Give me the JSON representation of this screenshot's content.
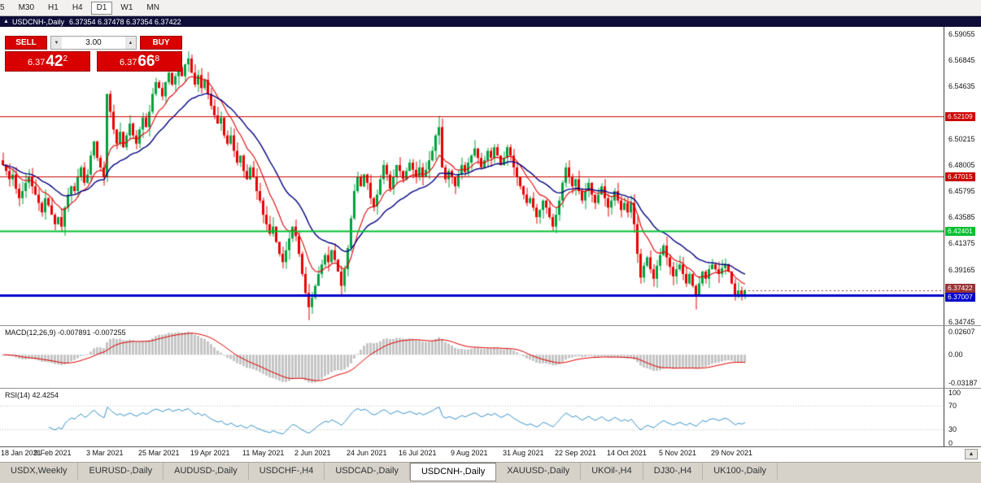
{
  "toolbar": {
    "timeframes": [
      "5",
      "M30",
      "H1",
      "H4",
      "D1",
      "W1",
      "MN"
    ],
    "active": "D1"
  },
  "chart": {
    "title_marker": "▲",
    "symbol_title": "USDCNH-,Daily",
    "ohlc": "6.37354 6.37478 6.37354 6.37422",
    "scroll_button_icon": "▲"
  },
  "trade_panel": {
    "sell_label": "SELL",
    "buy_label": "BUY",
    "volume": "3.00",
    "volume_down_icon": "▼",
    "volume_up_icon": "▲",
    "sell_price": {
      "base": "6.37",
      "big": "42",
      "sup": "2"
    },
    "buy_price": {
      "base": "6.37",
      "big": "66",
      "sup": "8"
    },
    "button_color": "#d80000"
  },
  "chart_data": {
    "type": "candlestick",
    "symbol": "USDCNH-",
    "timeframe": "Daily",
    "title": "USDCNH-,Daily",
    "ohlc_display": {
      "open": "6.37354",
      "high": "6.37478",
      "low": "6.37354",
      "close": "6.37422"
    },
    "ylim": [
      6.3447,
      6.5967
    ],
    "candle_up": "#00a13e",
    "candle_down": "#e60000",
    "closes": [
      6.48,
      6.475,
      6.468,
      6.472,
      6.46,
      6.452,
      6.458,
      6.465,
      6.47,
      6.462,
      6.455,
      6.448,
      6.44,
      6.452,
      6.446,
      6.438,
      6.43,
      6.436,
      6.428,
      6.444,
      6.455,
      6.462,
      6.458,
      6.47,
      6.478,
      6.465,
      6.472,
      6.488,
      6.5,
      6.486,
      6.478,
      6.47,
      6.54,
      6.525,
      6.51,
      6.498,
      6.508,
      6.495,
      6.505,
      6.515,
      6.505,
      6.498,
      6.51,
      6.52,
      6.512,
      6.525,
      6.54,
      6.55,
      6.545,
      6.538,
      6.55,
      6.558,
      6.548,
      6.555,
      6.562,
      6.555,
      6.565,
      6.57,
      6.558,
      6.548,
      6.556,
      6.545,
      6.552,
      6.54,
      6.53,
      6.522,
      6.515,
      6.52,
      6.505,
      6.498,
      6.505,
      6.492,
      6.482,
      6.488,
      6.475,
      6.468,
      6.478,
      6.47,
      6.458,
      6.45,
      6.438,
      6.43,
      6.422,
      6.428,
      6.415,
      6.405,
      6.398,
      6.408,
      6.418,
      6.428,
      6.42,
      6.405,
      6.388,
      6.372,
      6.36,
      6.368,
      6.378,
      6.388,
      6.396,
      6.404,
      6.398,
      6.408,
      6.4,
      6.39,
      6.378,
      6.392,
      6.41,
      6.435,
      6.458,
      6.47,
      6.462,
      6.472,
      6.465,
      6.452,
      6.445,
      6.455,
      6.468,
      6.48,
      6.472,
      6.46,
      6.47,
      6.48,
      6.475,
      6.468,
      6.475,
      6.482,
      6.476,
      6.47,
      6.478,
      6.47,
      6.476,
      6.484,
      6.492,
      6.505,
      6.512,
      6.478,
      6.468,
      6.475,
      6.47,
      6.462,
      6.472,
      6.48,
      6.474,
      6.482,
      6.488,
      6.494,
      6.486,
      6.478,
      6.484,
      6.492,
      6.486,
      6.495,
      6.488,
      6.48,
      6.486,
      6.495,
      6.488,
      6.478,
      6.47,
      6.462,
      6.455,
      6.448,
      6.452,
      6.444,
      6.436,
      6.442,
      6.45,
      6.444,
      6.436,
      6.428,
      6.438,
      6.45,
      6.465,
      6.478,
      6.47,
      6.462,
      6.468,
      6.458,
      6.45,
      6.458,
      6.465,
      6.455,
      6.448,
      6.455,
      6.462,
      6.452,
      6.444,
      6.45,
      6.458,
      6.45,
      6.442,
      6.448,
      6.44,
      6.448,
      6.43,
      6.405,
      6.385,
      6.395,
      6.402,
      6.392,
      6.384,
      6.395,
      6.404,
      6.412,
      6.402,
      6.394,
      6.386,
      6.392,
      6.396,
      6.388,
      6.38,
      6.388,
      6.378,
      6.37,
      6.38,
      6.39,
      6.384,
      6.392,
      6.396,
      6.392,
      6.388,
      6.393,
      6.396,
      6.39,
      6.38,
      6.369,
      6.374,
      6.37,
      6.3742
    ],
    "wick_overrides": {
      "57": {
        "high": 6.576
      },
      "94": {
        "low": 6.349
      },
      "134": {
        "high": 6.5215
      },
      "213": {
        "low": 6.358
      },
      "225": {
        "low": 6.3655
      }
    },
    "moving_averages": [
      {
        "name": "ma-fast",
        "period": 10,
        "color": "#dd0000"
      },
      {
        "name": "ma-slow",
        "period": 24,
        "color": "#000080"
      }
    ],
    "horizontal_lines": [
      {
        "price": 6.52109,
        "label": "6.52109",
        "color": "#cc0000",
        "lineWidth": 1
      },
      {
        "price": 6.47015,
        "label": "6.47015",
        "color": "#cc0000",
        "lineWidth": 1
      },
      {
        "price": 6.42401,
        "label": "6.42401",
        "color": "#00bf2f",
        "lineWidth": 2
      },
      {
        "price": 6.37007,
        "label": "6.37007",
        "color": "#0000cc",
        "lineWidth": 3
      }
    ],
    "current_price_line": {
      "price": 6.37422,
      "label": "6.37422",
      "color": "#993333"
    },
    "indicators": {
      "macd": {
        "label": "MACD(12,26,9) -0.007891 -0.007255",
        "fast": 12,
        "slow": 26,
        "signal": 9,
        "current_values": [
          "-0.007891",
          "-0.007255"
        ],
        "ylim": [
          -0.0375,
          0.0325
        ],
        "ticks": [
          {
            "v": 0.02607,
            "t": "0.02607"
          },
          {
            "v": 0,
            "t": "0.00"
          },
          {
            "v": -0.03187,
            "t": "-0.03187"
          }
        ],
        "hist_color": "#c4c4c4",
        "signal_color": "#dd0000"
      },
      "rsi": {
        "label": "RSI(14) 42.4254",
        "period": 14,
        "current": "42.4254",
        "color": "#3a92c8",
        "levels": [
          70,
          30
        ],
        "ticks": [
          {
            "v": 100,
            "t": "100"
          },
          {
            "v": 70,
            "t": "70"
          },
          {
            "v": 30,
            "t": "30"
          },
          {
            "v": 0,
            "t": "0"
          }
        ]
      }
    },
    "x_labels": [
      {
        "t": "18 Jan 2021",
        "i": 0
      },
      {
        "t": "9 Feb 2021",
        "i": 16
      },
      {
        "t": "3 Mar 2021",
        "i": 32
      },
      {
        "t": "25 Mar 2021",
        "i": 48
      },
      {
        "t": "19 Apr 2021",
        "i": 64
      },
      {
        "t": "11 May 2021",
        "i": 80
      },
      {
        "t": "2 Jun 2021",
        "i": 96
      },
      {
        "t": "24 Jun 2021",
        "i": 112
      },
      {
        "t": "16 Jul 2021",
        "i": 128
      },
      {
        "t": "9 Aug 2021",
        "i": 144
      },
      {
        "t": "31 Aug 2021",
        "i": 160
      },
      {
        "t": "22 Sep 2021",
        "i": 176
      },
      {
        "t": "14 Oct 2021",
        "i": 192
      },
      {
        "t": "5 Nov 2021",
        "i": 208
      },
      {
        "t": "29 Nov 2021",
        "i": 224
      }
    ],
    "y_ticks": [
      {
        "v": 6.59055,
        "t": "6.59055"
      },
      {
        "v": 6.56845,
        "t": "6.56845"
      },
      {
        "v": 6.54635,
        "t": "6.54635"
      },
      {
        "v": 6.50215,
        "t": "6.50215"
      },
      {
        "v": 6.48005,
        "t": "6.48005"
      },
      {
        "v": 6.45795,
        "t": "6.45795"
      },
      {
        "v": 6.43585,
        "t": "6.43585"
      },
      {
        "v": 6.41375,
        "t": "6.41375"
      },
      {
        "v": 6.39165,
        "t": "6.39165"
      },
      {
        "v": 6.34745,
        "t": "6.34745"
      }
    ]
  },
  "tabs": {
    "active_index": 5,
    "items": [
      "USDX,Weekly",
      "EURUSD-,Daily",
      "AUDUSD-,Daily",
      "USDCHF-,H4",
      "USDCAD-,Daily",
      "USDCNH-,Daily",
      "XAUUSD-,Daily",
      "UKOil-,H4",
      "DJ30-,H4",
      "UK100-,Daily"
    ]
  }
}
